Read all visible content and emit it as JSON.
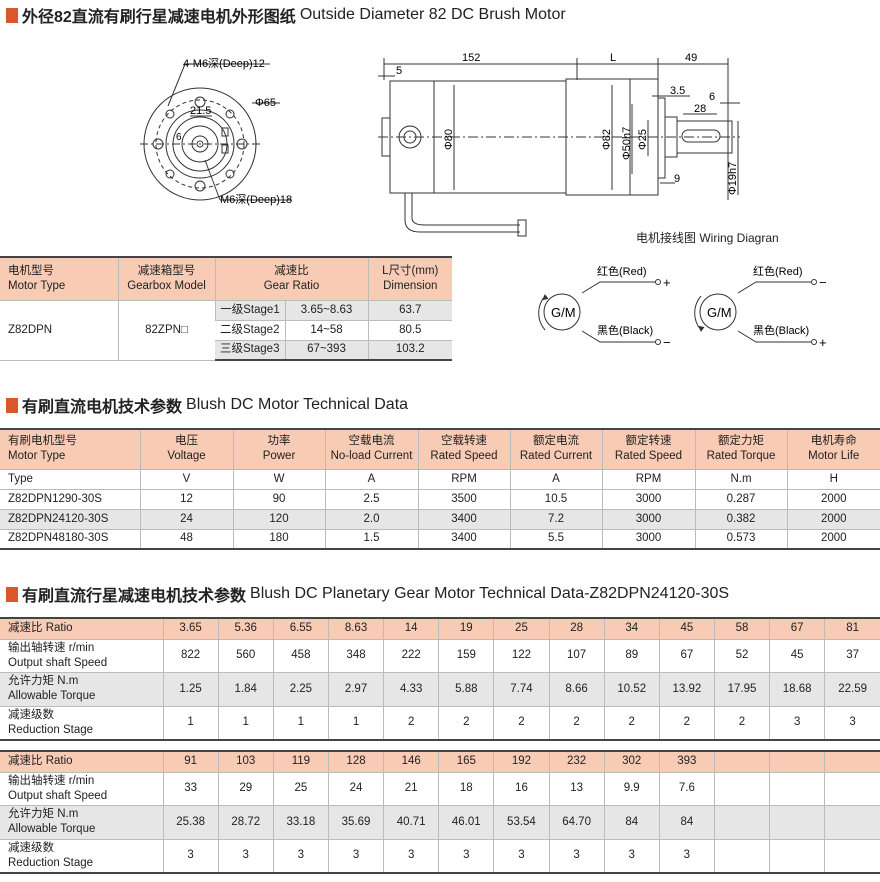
{
  "section1": {
    "title_cn": "外径82直流有刷行星减速电机外形图纸",
    "title_en": "Outside Diameter 82 DC Brush Motor"
  },
  "drawing": {
    "front_labels": [
      "4-M6深(Deep)12",
      "Φ65",
      "21.5",
      "6",
      "M6深(Deep)18"
    ],
    "side_labels": {
      "d152": "152",
      "dL": "L",
      "d49": "49",
      "d5": "5",
      "d3_5": "3.5",
      "d6": "6",
      "d28": "28",
      "d9": "9",
      "phi80": "Φ80",
      "phi82": "Φ82",
      "phi50": "Φ50h7",
      "phi25": "Φ25",
      "phi19": "Φ19h7"
    },
    "wiring_title": "电机接线图 Wiring Diagran"
  },
  "wiring": [
    {
      "motor": "G/M",
      "red": "红色(Red)",
      "red_sign": "+",
      "black": "黑色(Black)",
      "black_sign": "−"
    },
    {
      "motor": "G/M",
      "red": "红色(Red)",
      "red_sign": "−",
      "black": "黑色(Black)",
      "black_sign": "+"
    }
  ],
  "table1": {
    "headers": [
      [
        "电机型号",
        "Motor Type"
      ],
      [
        "减速箱型号",
        "Gearbox Model"
      ],
      [
        "减速比",
        "Gear Ratio"
      ],
      [
        "L尺寸(mm)",
        "Dimension"
      ]
    ],
    "motor": "Z82DPN",
    "gearbox": "82ZPN□",
    "rows": [
      {
        "stage": "一级Stage1",
        "ratio": "3.65~8.63",
        "L": "63.7"
      },
      {
        "stage": "二级Stage2",
        "ratio": "14~58",
        "L": "80.5"
      },
      {
        "stage": "三级Stage3",
        "ratio": "67~393",
        "L": "103.2"
      }
    ]
  },
  "section2": {
    "title_cn": "有刷直流电机技术参数",
    "title_en": "Blush DC Motor Technical Data"
  },
  "table2": {
    "headers": [
      [
        "有刷电机型号",
        "Motor Type"
      ],
      [
        "电压",
        "Voltage"
      ],
      [
        "功率",
        "Power"
      ],
      [
        "空载电流",
        "No-load Current"
      ],
      [
        "空载转速",
        "Rated Speed"
      ],
      [
        "额定电流",
        "Rated Current"
      ],
      [
        "额定转速",
        "Rated Speed"
      ],
      [
        "额定力矩",
        "Rated Torque"
      ],
      [
        "电机寿命",
        "Motor Life"
      ]
    ],
    "units": [
      "Type",
      "V",
      "W",
      "A",
      "RPM",
      "A",
      "RPM",
      "N.m",
      "H"
    ],
    "rows": [
      [
        "Z82DPN1290-30S",
        "12",
        "90",
        "2.5",
        "3500",
        "10.5",
        "3000",
        "0.287",
        "2000"
      ],
      [
        "Z82DPN24120-30S",
        "24",
        "120",
        "2.0",
        "3400",
        "7.2",
        "3000",
        "0.382",
        "2000"
      ],
      [
        "Z82DPN48180-30S",
        "48",
        "180",
        "1.5",
        "3400",
        "5.5",
        "3000",
        "0.573",
        "2000"
      ]
    ]
  },
  "section3": {
    "title_cn": "有刷直流行星减速电机技术参数",
    "title_en": "Blush DC Planetary Gear Motor Technical Data-Z82DPN24120-30S"
  },
  "table3": {
    "row_labels": [
      [
        "减速比 Ratio",
        ""
      ],
      [
        "输出轴转速 r/min",
        "Output shaft Speed"
      ],
      [
        "允许力矩 N.m",
        "Allowable Torque"
      ],
      [
        "减速级数",
        "Reduction Stage"
      ]
    ],
    "block1": {
      "ratio": [
        "3.65",
        "5.36",
        "6.55",
        "8.63",
        "14",
        "19",
        "25",
        "28",
        "34",
        "45",
        "58",
        "67",
        "81"
      ],
      "speed": [
        "822",
        "560",
        "458",
        "348",
        "222",
        "159",
        "122",
        "107",
        "89",
        "67",
        "52",
        "45",
        "37"
      ],
      "torque": [
        "1.25",
        "1.84",
        "2.25",
        "2.97",
        "4.33",
        "5.88",
        "7.74",
        "8.66",
        "10.52",
        "13.92",
        "17.95",
        "18.68",
        "22.59"
      ],
      "stage": [
        "1",
        "1",
        "1",
        "1",
        "2",
        "2",
        "2",
        "2",
        "2",
        "2",
        "2",
        "3",
        "3"
      ]
    },
    "block2": {
      "ratio": [
        "91",
        "103",
        "119",
        "128",
        "146",
        "165",
        "192",
        "232",
        "302",
        "393",
        "",
        "",
        ""
      ],
      "speed": [
        "33",
        "29",
        "25",
        "24",
        "21",
        "18",
        "16",
        "13",
        "9.9",
        "7.6",
        "",
        "",
        ""
      ],
      "torque": [
        "25.38",
        "28.72",
        "33.18",
        "35.69",
        "40.71",
        "46.01",
        "53.54",
        "64.70",
        "84",
        "84",
        "",
        "",
        ""
      ],
      "stage": [
        "3",
        "3",
        "3",
        "3",
        "3",
        "3",
        "3",
        "3",
        "3",
        "3",
        "",
        "",
        ""
      ]
    }
  },
  "colors": {
    "accent": "#d9572a",
    "header_bg": "#f8cbb5",
    "alt_row": "#e6e6e6"
  }
}
